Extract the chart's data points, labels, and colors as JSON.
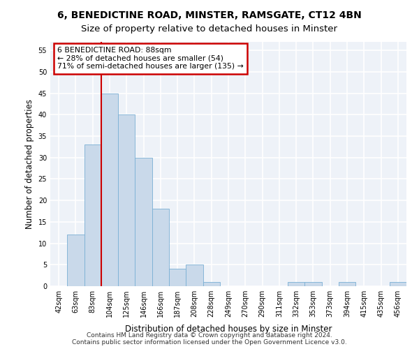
{
  "title1": "6, BENEDICTINE ROAD, MINSTER, RAMSGATE, CT12 4BN",
  "title2": "Size of property relative to detached houses in Minster",
  "xlabel": "Distribution of detached houses by size in Minster",
  "ylabel": "Number of detached properties",
  "categories": [
    "42sqm",
    "63sqm",
    "83sqm",
    "104sqm",
    "125sqm",
    "146sqm",
    "166sqm",
    "187sqm",
    "208sqm",
    "228sqm",
    "249sqm",
    "270sqm",
    "290sqm",
    "311sqm",
    "332sqm",
    "353sqm",
    "373sqm",
    "394sqm",
    "415sqm",
    "435sqm",
    "456sqm"
  ],
  "values": [
    0,
    12,
    33,
    45,
    40,
    30,
    18,
    4,
    5,
    1,
    0,
    0,
    0,
    0,
    1,
    1,
    0,
    1,
    0,
    0,
    1
  ],
  "bar_color": "#c9d9ea",
  "bar_edge_color": "#7aafd4",
  "vline_color": "#cc0000",
  "vline_x": 2.5,
  "annotation_title": "6 BENEDICTINE ROAD: 88sqm",
  "annotation_line1": "← 28% of detached houses are smaller (54)",
  "annotation_line2": "71% of semi-detached houses are larger (135) →",
  "annotation_box_facecolor": "#ffffff",
  "annotation_box_edgecolor": "#cc0000",
  "ylim": [
    0,
    57
  ],
  "yticks": [
    0,
    5,
    10,
    15,
    20,
    25,
    30,
    35,
    40,
    45,
    50,
    55
  ],
  "footer1": "Contains HM Land Registry data © Crown copyright and database right 2024.",
  "footer2": "Contains public sector information licensed under the Open Government Licence v3.0.",
  "bg_color": "#eef2f8",
  "grid_color": "#ffffff",
  "title_fontsize": 10,
  "subtitle_fontsize": 9.5,
  "tick_fontsize": 7,
  "ylabel_fontsize": 8.5,
  "xlabel_fontsize": 8.5,
  "footer_fontsize": 6.5
}
